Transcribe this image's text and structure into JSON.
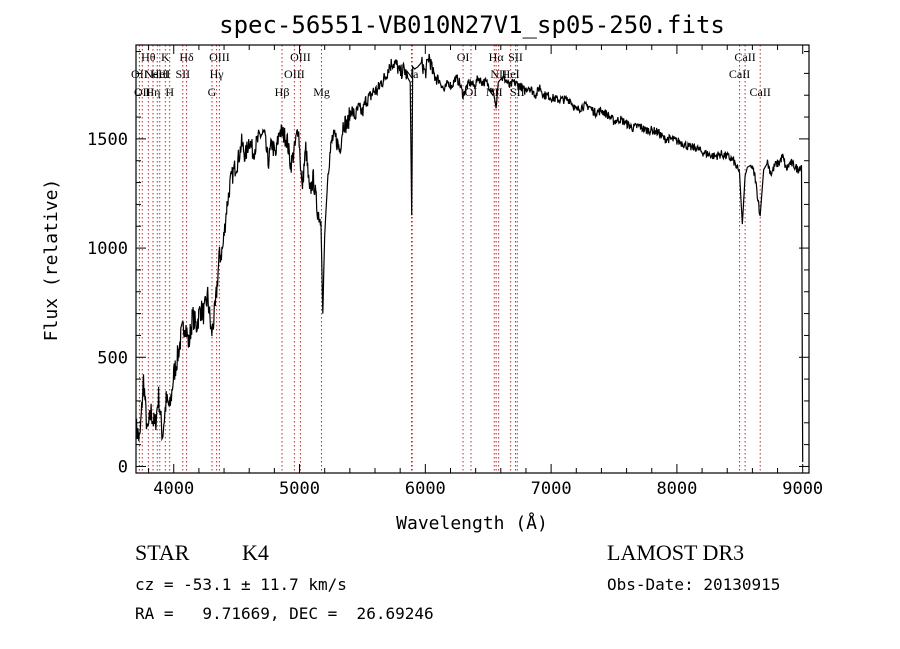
{
  "chart_data": {
    "type": "line",
    "title": "spec-56551-VB010N27V1_sp05-250.fits",
    "xlabel": "Wavelength (Å)",
    "ylabel": "Flux (relative)",
    "xlim": [
      3700,
      9050
    ],
    "ylim": [
      -30,
      1930
    ],
    "x_ticks": [
      {
        "value": 4000,
        "label": "4000"
      },
      {
        "value": 5000,
        "label": "5000"
      },
      {
        "value": 6000,
        "label": "6000"
      },
      {
        "value": 7000,
        "label": "7000"
      },
      {
        "value": 8000,
        "label": "8000"
      },
      {
        "value": 9000,
        "label": "9000"
      }
    ],
    "y_ticks": [
      {
        "value": 0,
        "label": "0"
      },
      {
        "value": 500,
        "label": "500"
      },
      {
        "value": 1000,
        "label": "1000"
      },
      {
        "value": 1500,
        "label": "1500"
      }
    ],
    "series": [
      {
        "name": "spectrum",
        "x": [
          3700,
          3730,
          3760,
          3790,
          3820,
          3850,
          3880,
          3910,
          3940,
          3970,
          4000,
          4030,
          4060,
          4090,
          4120,
          4150,
          4180,
          4210,
          4240,
          4270,
          4300,
          4330,
          4360,
          4390,
          4420,
          4450,
          4480,
          4510,
          4540,
          4570,
          4600,
          4630,
          4660,
          4690,
          4720,
          4750,
          4780,
          4810,
          4840,
          4870,
          4900,
          4930,
          4960,
          4990,
          5020,
          5050,
          5080,
          5110,
          5140,
          5170,
          5185,
          5200,
          5230,
          5260,
          5290,
          5320,
          5350,
          5380,
          5410,
          5440,
          5470,
          5500,
          5530,
          5560,
          5590,
          5620,
          5650,
          5680,
          5710,
          5740,
          5770,
          5800,
          5830,
          5860,
          5880,
          5892,
          5900,
          5915,
          5940,
          5970,
          6000,
          6030,
          6060,
          6090,
          6120,
          6150,
          6180,
          6210,
          6240,
          6270,
          6300,
          6330,
          6360,
          6390,
          6420,
          6450,
          6480,
          6510,
          6540,
          6563,
          6580,
          6610,
          6640,
          6670,
          6700,
          6730,
          6760,
          6790,
          6820,
          6850,
          6880,
          6910,
          6940,
          6970,
          7000,
          7050,
          7100,
          7150,
          7200,
          7250,
          7300,
          7350,
          7400,
          7450,
          7500,
          7550,
          7600,
          7650,
          7700,
          7750,
          7800,
          7850,
          7900,
          7950,
          8000,
          8050,
          8100,
          8150,
          8200,
          8250,
          8300,
          8350,
          8400,
          8450,
          8498,
          8520,
          8542,
          8560,
          8590,
          8620,
          8662,
          8690,
          8720,
          8750,
          8780,
          8810,
          8840,
          8870,
          8900,
          8930,
          8960,
          8990,
          9000
        ],
        "y": [
          180,
          120,
          400,
          150,
          250,
          180,
          320,
          140,
          300,
          270,
          420,
          500,
          600,
          660,
          560,
          690,
          640,
          720,
          700,
          780,
          600,
          720,
          950,
          1000,
          1180,
          1300,
          1360,
          1400,
          1480,
          1420,
          1500,
          1440,
          1480,
          1520,
          1520,
          1390,
          1480,
          1420,
          1540,
          1520,
          1500,
          1380,
          1450,
          1560,
          1270,
          1460,
          1250,
          1320,
          1180,
          1120,
          700,
          1060,
          1380,
          1500,
          1500,
          1450,
          1580,
          1560,
          1640,
          1600,
          1640,
          1620,
          1680,
          1690,
          1720,
          1720,
          1760,
          1780,
          1830,
          1850,
          1840,
          1800,
          1820,
          1780,
          1760,
          1150,
          1830,
          1820,
          1830,
          1850,
          1800,
          1880,
          1800,
          1780,
          1760,
          1720,
          1760,
          1740,
          1780,
          1760,
          1700,
          1740,
          1760,
          1740,
          1780,
          1760,
          1760,
          1740,
          1720,
          1640,
          1760,
          1780,
          1770,
          1740,
          1760,
          1750,
          1740,
          1720,
          1740,
          1720,
          1700,
          1740,
          1700,
          1700,
          1690,
          1680,
          1680,
          1680,
          1630,
          1650,
          1650,
          1620,
          1630,
          1610,
          1580,
          1590,
          1570,
          1550,
          1560,
          1540,
          1540,
          1530,
          1500,
          1500,
          1490,
          1480,
          1460,
          1460,
          1440,
          1430,
          1420,
          1430,
          1420,
          1400,
          1340,
          1110,
          1330,
          1370,
          1380,
          1330,
          1150,
          1360,
          1390,
          1340,
          1380,
          1390,
          1420,
          1360,
          1390,
          1380,
          1360,
          1380,
          20
        ]
      }
    ],
    "line_markers": [
      {
        "wavelength": 3727,
        "label": "OII",
        "row": 2
      },
      {
        "wavelength": 3750,
        "label": "OII",
        "row": 3
      },
      {
        "wavelength": 3798,
        "label": "Hθ",
        "row": 1
      },
      {
        "wavelength": 3835,
        "label": "Hη",
        "row": 3
      },
      {
        "wavelength": 3869,
        "label": "NeIII",
        "row": 2
      },
      {
        "wavelength": 3889,
        "label": "HeI",
        "row": 2
      },
      {
        "wavelength": 3933,
        "label": "K",
        "row": 1
      },
      {
        "wavelength": 3968,
        "label": "H",
        "row": 3
      },
      {
        "wavelength": 4072,
        "label": "SII",
        "row": 2
      },
      {
        "wavelength": 4102,
        "label": "Hδ",
        "row": 1
      },
      {
        "wavelength": 4304,
        "label": "G",
        "row": 3
      },
      {
        "wavelength": 4341,
        "label": "Hγ",
        "row": 2
      },
      {
        "wavelength": 4363,
        "label": "OIII",
        "row": 1
      },
      {
        "wavelength": 4861,
        "label": "Hβ",
        "row": 3
      },
      {
        "wavelength": 4959,
        "label": "OIII",
        "row": 2
      },
      {
        "wavelength": 5007,
        "label": "OIII",
        "row": 1
      },
      {
        "wavelength": 5175,
        "label": "Mg",
        "row": 3
      },
      {
        "wavelength": 5890,
        "label": "Na",
        "row": 2
      },
      {
        "wavelength": 5896,
        "label": "",
        "row": 0
      },
      {
        "wavelength": 6300,
        "label": "OI",
        "row": 1
      },
      {
        "wavelength": 6363,
        "label": "OI",
        "row": 3
      },
      {
        "wavelength": 6548,
        "label": "NII",
        "row": 3
      },
      {
        "wavelength": 6563,
        "label": "Hα",
        "row": 1
      },
      {
        "wavelength": 6583,
        "label": "NII",
        "row": 2
      },
      {
        "wavelength": 6678,
        "label": "HeI",
        "row": 2
      },
      {
        "wavelength": 6717,
        "label": "SII",
        "row": 1
      },
      {
        "wavelength": 6731,
        "label": "SII",
        "row": 3
      },
      {
        "wavelength": 8498,
        "label": "CaII",
        "row": 2
      },
      {
        "wavelength": 8542,
        "label": "CaII",
        "row": 1
      },
      {
        "wavelength": 8662,
        "label": "CaII",
        "row": 3
      }
    ]
  },
  "info": {
    "object_class": "STAR",
    "subclass": "K4",
    "survey": "LAMOST DR3",
    "cz": "cz = -53.1 ± 11.7 km/s",
    "obs_date": "Obs-Date: 20130915",
    "coords": "RA =   9.71669, DEC =  26.69246"
  }
}
